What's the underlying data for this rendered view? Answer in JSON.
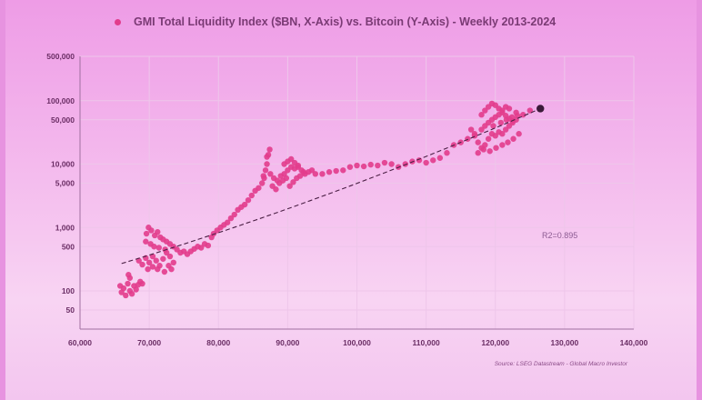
{
  "chart_data": {
    "type": "scatter",
    "title": "GMI Total Liquidity Index ($BN, X-Axis) vs. Bitcoin (Y-Axis) - Weekly 2013-2024",
    "xlabel": "",
    "ylabel": "",
    "xlim": [
      60000,
      140000
    ],
    "ylim": [
      25,
      500000
    ],
    "yscale": "log",
    "grid": true,
    "x_ticks": [
      "60,000",
      "70,000",
      "80,000",
      "90,000",
      "100,000",
      "110,000",
      "120,000",
      "130,000",
      "140,000"
    ],
    "x_tick_values": [
      60000,
      70000,
      80000,
      90000,
      100000,
      110000,
      120000,
      130000,
      140000
    ],
    "y_ticks": [
      "500,000",
      "100,000",
      "50,000",
      "10,000",
      "5,000",
      "1,000",
      "500",
      "100",
      "50"
    ],
    "y_tick_values": [
      500000,
      100000,
      50000,
      10000,
      5000,
      1000,
      500,
      100,
      50
    ],
    "series": [
      {
        "color": "#e23c8c",
        "points": [
          [
            65800,
            120
          ],
          [
            66000,
            95
          ],
          [
            66300,
            110
          ],
          [
            66600,
            85
          ],
          [
            66900,
            130
          ],
          [
            67200,
            100
          ],
          [
            67500,
            90
          ],
          [
            67800,
            120
          ],
          [
            68100,
            105
          ],
          [
            68400,
            125
          ],
          [
            68700,
            140
          ],
          [
            69000,
            130
          ],
          [
            67200,
            160
          ],
          [
            67000,
            180
          ],
          [
            68500,
            300
          ],
          [
            69000,
            260
          ],
          [
            69500,
            330
          ],
          [
            70000,
            280
          ],
          [
            70500,
            350
          ],
          [
            71000,
            300
          ],
          [
            71500,
            250
          ],
          [
            72000,
            320
          ],
          [
            72500,
            400
          ],
          [
            73000,
            350
          ],
          [
            73500,
            280
          ],
          [
            69800,
            220
          ],
          [
            70500,
            240
          ],
          [
            71200,
            220
          ],
          [
            72200,
            200
          ],
          [
            72800,
            250
          ],
          [
            73200,
            220
          ],
          [
            69600,
            800
          ],
          [
            69900,
            1000
          ],
          [
            70300,
            900
          ],
          [
            70800,
            750
          ],
          [
            71200,
            850
          ],
          [
            71600,
            700
          ],
          [
            72000,
            650
          ],
          [
            72500,
            600
          ],
          [
            73000,
            550
          ],
          [
            73500,
            500
          ],
          [
            69500,
            600
          ],
          [
            70200,
            550
          ],
          [
            70700,
            500
          ],
          [
            71400,
            480
          ],
          [
            72300,
            450
          ],
          [
            74000,
            450
          ],
          [
            74500,
            400
          ],
          [
            75000,
            420
          ],
          [
            75500,
            380
          ],
          [
            76000,
            420
          ],
          [
            76500,
            460
          ],
          [
            77000,
            500
          ],
          [
            77500,
            480
          ],
          [
            78000,
            550
          ],
          [
            78500,
            520
          ],
          [
            79000,
            700
          ],
          [
            79300,
            800
          ],
          [
            79800,
            900
          ],
          [
            80300,
            1000
          ],
          [
            80800,
            1100
          ],
          [
            81300,
            1200
          ],
          [
            81800,
            1400
          ],
          [
            82300,
            1600
          ],
          [
            82800,
            1900
          ],
          [
            83300,
            2100
          ],
          [
            83800,
            2300
          ],
          [
            84300,
            2700
          ],
          [
            84800,
            3200
          ],
          [
            85300,
            3800
          ],
          [
            85800,
            4200
          ],
          [
            86300,
            5000
          ],
          [
            86600,
            6000
          ],
          [
            86800,
            8000
          ],
          [
            87000,
            10000
          ],
          [
            87200,
            14000
          ],
          [
            87400,
            17000
          ],
          [
            87000,
            13000
          ],
          [
            86500,
            6500
          ],
          [
            87500,
            7000
          ],
          [
            88000,
            6000
          ],
          [
            88500,
            5500
          ],
          [
            89000,
            6500
          ],
          [
            89500,
            7000
          ],
          [
            90000,
            8000
          ],
          [
            90500,
            9000
          ],
          [
            91000,
            8500
          ],
          [
            91500,
            9000
          ],
          [
            92000,
            8000
          ],
          [
            92500,
            7000
          ],
          [
            93000,
            7500
          ],
          [
            93500,
            8000
          ],
          [
            94000,
            7000
          ],
          [
            87800,
            4500
          ],
          [
            88300,
            4000
          ],
          [
            88800,
            5000
          ],
          [
            89300,
            5500
          ],
          [
            89800,
            6000
          ],
          [
            90300,
            4500
          ],
          [
            90800,
            5200
          ],
          [
            91300,
            6000
          ],
          [
            91800,
            6500
          ],
          [
            92300,
            7500
          ],
          [
            89500,
            10000
          ],
          [
            90000,
            11000
          ],
          [
            90500,
            12000
          ],
          [
            91000,
            10500
          ],
          [
            91500,
            9500
          ],
          [
            95000,
            7000
          ],
          [
            96000,
            7500
          ],
          [
            97000,
            7800
          ],
          [
            98000,
            8000
          ],
          [
            99000,
            9000
          ],
          [
            100000,
            9500
          ],
          [
            101000,
            9200
          ],
          [
            102000,
            9800
          ],
          [
            103000,
            9500
          ],
          [
            104000,
            10500
          ],
          [
            105000,
            10000
          ],
          [
            106000,
            9000
          ],
          [
            107000,
            10000
          ],
          [
            108000,
            11000
          ],
          [
            109000,
            11500
          ],
          [
            110000,
            10500
          ],
          [
            111000,
            11500
          ],
          [
            112000,
            12500
          ],
          [
            113000,
            15000
          ],
          [
            114000,
            20000
          ],
          [
            115000,
            22000
          ],
          [
            116000,
            25000
          ],
          [
            117000,
            30000
          ],
          [
            118000,
            35000
          ],
          [
            118500,
            40000
          ],
          [
            119000,
            45000
          ],
          [
            119500,
            50000
          ],
          [
            120000,
            55000
          ],
          [
            120500,
            60000
          ],
          [
            121000,
            65000
          ],
          [
            121500,
            58000
          ],
          [
            122000,
            52000
          ],
          [
            122500,
            48000
          ],
          [
            116500,
            35000
          ],
          [
            117000,
            28000
          ],
          [
            117500,
            22000
          ],
          [
            118000,
            18000
          ],
          [
            118500,
            20000
          ],
          [
            119000,
            25000
          ],
          [
            119500,
            30000
          ],
          [
            120000,
            28000
          ],
          [
            120500,
            32000
          ],
          [
            121000,
            30000
          ],
          [
            121500,
            35000
          ],
          [
            122000,
            40000
          ],
          [
            122500,
            45000
          ],
          [
            123000,
            50000
          ],
          [
            118000,
            60000
          ],
          [
            118500,
            70000
          ],
          [
            119000,
            80000
          ],
          [
            119500,
            90000
          ],
          [
            120000,
            85000
          ],
          [
            120500,
            75000
          ],
          [
            121000,
            70000
          ],
          [
            121500,
            80000
          ],
          [
            122000,
            75000
          ],
          [
            123000,
            65000
          ],
          [
            124000,
            60000
          ],
          [
            125000,
            70000
          ],
          [
            117500,
            15000
          ],
          [
            118300,
            17000
          ],
          [
            119200,
            16000
          ],
          [
            120100,
            18000
          ],
          [
            121000,
            20000
          ],
          [
            121800,
            22000
          ],
          [
            122600,
            25000
          ],
          [
            123400,
            30000
          ],
          [
            119700,
            40000
          ],
          [
            120800,
            45000
          ],
          [
            121600,
            50000
          ],
          [
            122400,
            55000
          ],
          [
            123200,
            58000
          ]
        ]
      }
    ],
    "latest_point": [
      126500,
      75000
    ],
    "trendline": {
      "type": "exponential",
      "x": [
        66000,
        126500
      ],
      "y": [
        270,
        75000
      ],
      "label": "R2=0.895"
    }
  },
  "source": "Source: LSEG Datastream - Global Macro Investor"
}
